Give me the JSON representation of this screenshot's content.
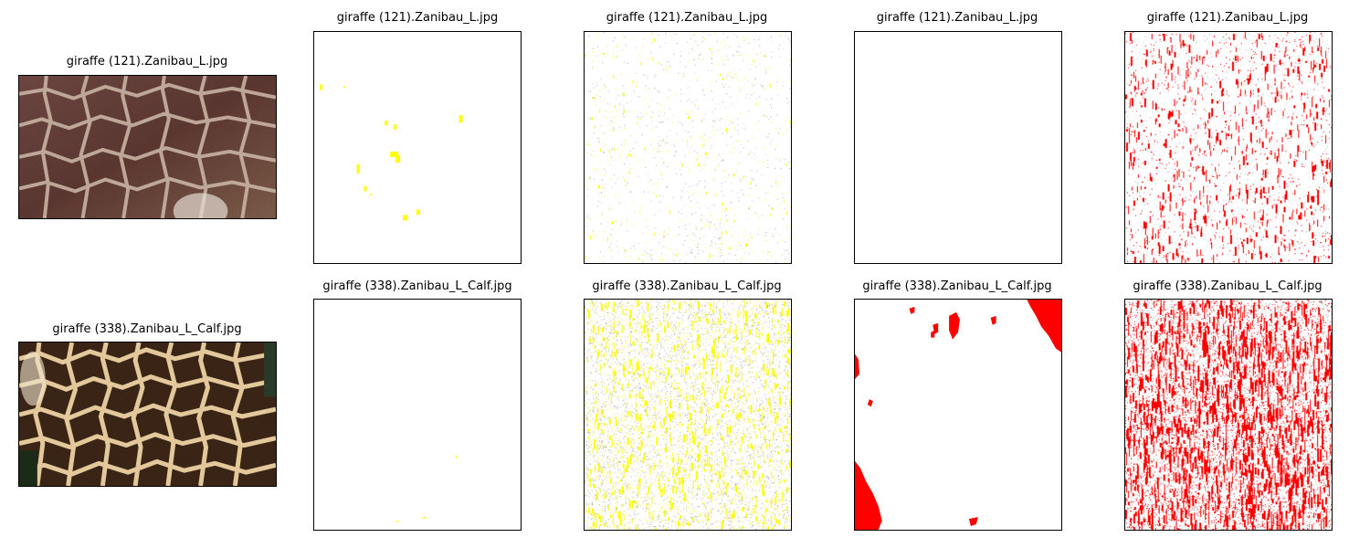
{
  "row1": {
    "titles": [
      "giraffe (121).Zanibau_L.jpg",
      "giraffe (121).Zanibau_L.jpg",
      "giraffe (121).Zanibau_L.jpg",
      "giraffe (121).Zanibau_L.jpg",
      "giraffe (121).Zanibau_L.jpg"
    ]
  },
  "row2": {
    "titles": [
      "giraffe (338).Zanibau_L_Calf.jpg",
      "giraffe (338).Zanibau_L_Calf.jpg",
      "giraffe (338).Zanibau_L_Calf.jpg",
      "giraffe (338).Zanibau_L_Calf.jpg",
      "giraffe (338).Zanibau_L_Calf.jpg"
    ]
  },
  "colors": {
    "yellow_mark": "#ffff00",
    "red_mark": "#ff0000",
    "photo1_base": "#5e3a34",
    "photo1_line": "#c9b3a3",
    "photo2_base": "#3a2416",
    "photo2_line": "#e2c89a"
  }
}
